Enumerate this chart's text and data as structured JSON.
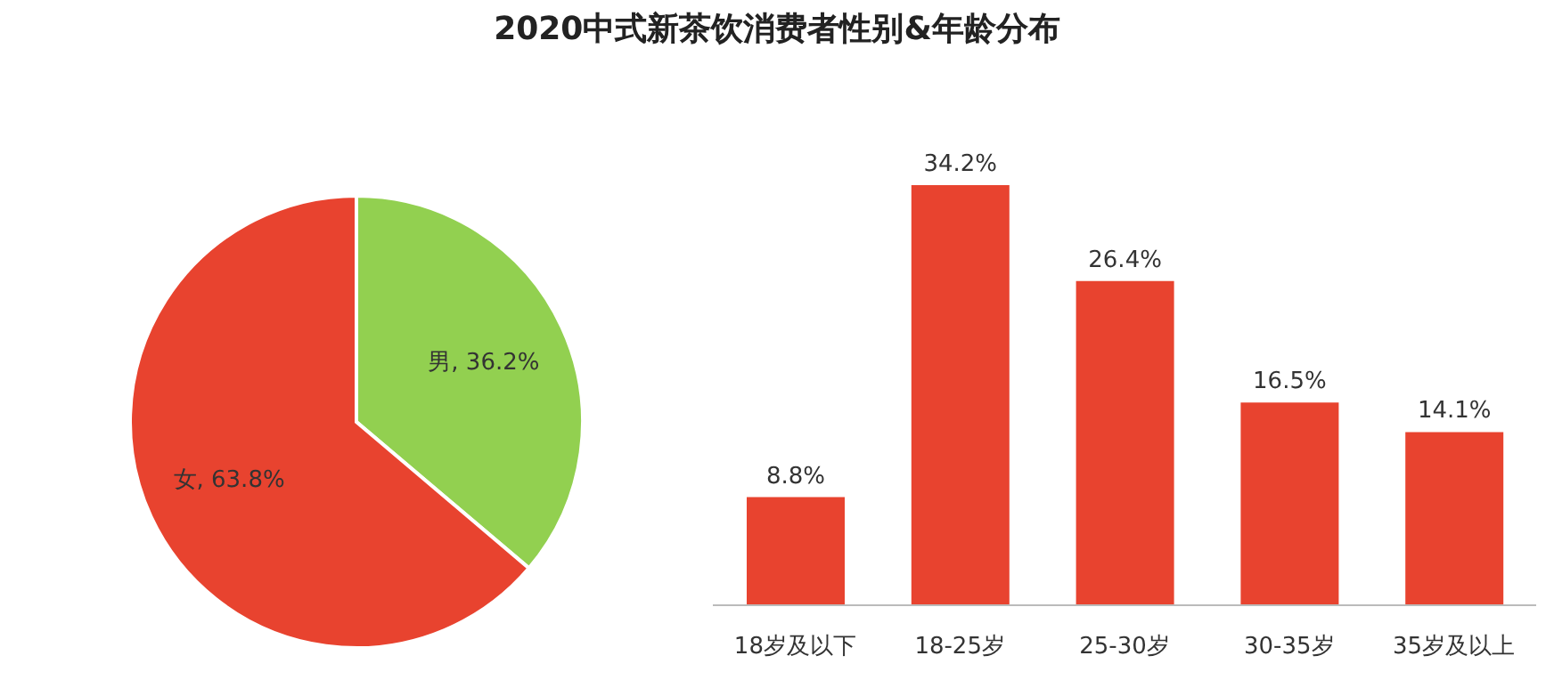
{
  "chart_data": [
    {
      "type": "pie",
      "categories": [
        "男",
        "女"
      ],
      "values": [
        36.2,
        63.8
      ],
      "colors": [
        "#92d050",
        "#e8432f"
      ],
      "value_labels": [
        "36.2%",
        "63.8%"
      ]
    },
    {
      "type": "bar",
      "title": "2020中式新茶饮消费者性别&年龄分布",
      "categories": [
        "18岁及以下",
        "18-25岁",
        "25-30岁",
        "30-35岁",
        "35岁及以上"
      ],
      "values": [
        8.8,
        34.2,
        26.4,
        16.5,
        14.1
      ],
      "color": "#e8432f",
      "value_labels": [
        "8.8%",
        "34.2%",
        "26.4%",
        "16.5%",
        "14.1%"
      ]
    }
  ]
}
